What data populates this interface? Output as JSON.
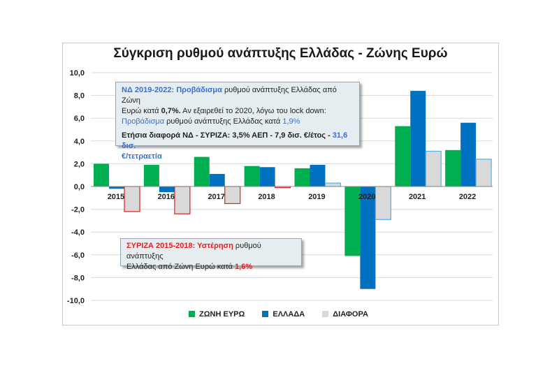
{
  "chart_data": {
    "type": "bar",
    "title": "Σύγκριση ρυθμού ανάπτυξης Ελλάδας - Ζώνης Ευρώ",
    "categories": [
      "2015",
      "2016",
      "2017",
      "2018",
      "2019",
      "2020",
      "2021",
      "2022"
    ],
    "series": [
      {
        "name": "ΖΩΝΗ ΕΥΡΩ",
        "color": "#00b050",
        "values": [
          2.0,
          1.9,
          2.6,
          1.8,
          1.6,
          -6.1,
          5.3,
          3.2
        ]
      },
      {
        "name": "ΕΛΛΑΔΑ",
        "color": "#0070c0",
        "values": [
          -0.2,
          -0.5,
          1.1,
          1.7,
          1.9,
          -9.0,
          8.4,
          5.6
        ]
      },
      {
        "name": "ΔΙΑΦΟΡΑ",
        "color": "#d9d9d9",
        "values": [
          -2.2,
          -2.4,
          -1.5,
          -0.1,
          0.3,
          -2.9,
          3.1,
          2.4
        ]
      }
    ],
    "difference_border_colors": [
      "#e02020",
      "#e02020",
      "#e02020",
      "#e02020",
      "#4fb3e8",
      "#4fb3e8",
      "#4fb3e8",
      "#4fb3e8"
    ],
    "y_ticks": [
      "10,0",
      "8,0",
      "6,0",
      "4,0",
      "2,0",
      "0,0",
      "-2,0",
      "-4,0",
      "-6,0",
      "-8,0",
      "-10,0"
    ],
    "ylim": [
      -10,
      10
    ],
    "grid": true,
    "legend": "bottom"
  },
  "callout_nd": {
    "l1_a": "ΝΔ 2019-2022: Προβάδισμα",
    "l1_b": " ρυθμού ανάπτυξης Ελλάδας από Ζώνη",
    "l2_a": "Ευρώ κατά ",
    "l2_b": "0,7%.",
    "l2_c": " Αν εξαιρεθεί το 2020, λόγω του lock down:",
    "l3_a": "Προβάδισμα",
    "l3_b": " ρυθμού ανάπτυξης Ελλάδας κατά ",
    "l3_c": "1,9%",
    "l4_a": "Ετήσια διαφορά ΝΔ - ΣΥΡΙΖΑ: 3,5% ΑΕΠ - 7,9 δισ. €/έτος - ",
    "l4_b": "31,6 δισ.",
    "l5": "€/τετραετία"
  },
  "callout_syriza": {
    "l1_a": "ΣΥΡΙΖΑ 2015-2018: Υστέρηση",
    "l1_b": " ρυθμού ανάπτυξης",
    "l2_a": "Ελλάδας από Ζώνη Ευρώ κατά ",
    "l2_b": "1,6%"
  }
}
